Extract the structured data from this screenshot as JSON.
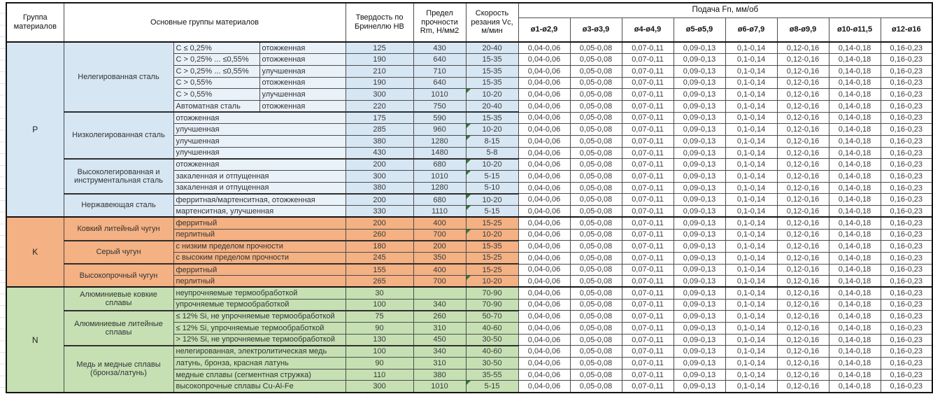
{
  "header": {
    "group_col": "Группа материалов",
    "materials_col": "Основные группы материалов",
    "hardness_col": "Твердость по Бринеллю НВ",
    "strength_col": "Предел прочности Rm, Н/мм2",
    "speed_col": "Скорость резания Vc, м/мин",
    "feed_col": "Подача Fn, мм/об",
    "diameter_cols": [
      "ø1-ø2,9",
      "ø3-ø3,9",
      "ø4-ø4,9",
      "ø5-ø5,9",
      "ø6-ø7,9",
      "ø8-ø9,9",
      "ø10-ø11,5",
      "ø12-ø16"
    ]
  },
  "feed_values": [
    "0,04-0,06",
    "0,05-0,08",
    "0,07-0,11",
    "0,09-0,13",
    "0,1-0,14",
    "0,12-0,16",
    "0,14-0,18",
    "0,16-0,23"
  ],
  "colors": {
    "group_p": "#d7e6f3",
    "group_p_detail": "#e9f1f9",
    "group_k": "#f4b183",
    "group_k_detail": "#f4b183",
    "group_n": "#c6e0b4",
    "group_n_detail": "#c6e0b4",
    "note_marker": "#2e7d32",
    "border_heavy": "#141414",
    "border_light": "#4d4d4d"
  },
  "groups": [
    {
      "code": "P",
      "color": "#d7e6f3",
      "detail_color": "#e9f1f9",
      "subgroups": [
        {
          "name": "Нелегированная сталь",
          "rows": [
            {
              "d1": "C ≤ 0,25%",
              "d2": "отожженная",
              "hb": "125",
              "rm": "430",
              "vc": "20-40",
              "note": false
            },
            {
              "d1": "C > 0,25% ... ≤0,55%",
              "d2": "отожженная",
              "hb": "190",
              "rm": "640",
              "vc": "15-35",
              "note": false
            },
            {
              "d1": "C > 0,25% ... ≤0,55%",
              "d2": "улучшенная",
              "hb": "210",
              "rm": "710",
              "vc": "15-35",
              "note": false
            },
            {
              "d1": "C > 0,55%",
              "d2": "отожженная",
              "hb": "190",
              "rm": "640",
              "vc": "15-35",
              "note": false
            },
            {
              "d1": "C > 0,55%",
              "d2": "улучшенная",
              "hb": "300",
              "rm": "1010",
              "vc": "10-20",
              "note": true
            },
            {
              "d1": "Автоматная сталь",
              "d2": "отожженная",
              "hb": "220",
              "rm": "750",
              "vc": "20-40",
              "note": false
            }
          ]
        },
        {
          "name": "Низколегированная сталь",
          "rows": [
            {
              "d": "отожженная",
              "hb": "175",
              "rm": "590",
              "vc": "15-35",
              "note": false
            },
            {
              "d": "улучшенная",
              "hb": "285",
              "rm": "960",
              "vc": "10-20",
              "note": true
            },
            {
              "d": "улучшенная",
              "hb": "380",
              "rm": "1280",
              "vc": "8-15",
              "note": true
            },
            {
              "d": "улучшенная",
              "hb": "430",
              "rm": "1480",
              "vc": "5-8",
              "note": false
            }
          ]
        },
        {
          "name": "Высоколегированная и инструментальная сталь",
          "rows": [
            {
              "d": "отожженная",
              "hb": "200",
              "rm": "680",
              "vc": "10-20",
              "note": true
            },
            {
              "d": "закаленная и отпущенная",
              "hb": "300",
              "rm": "1010",
              "vc": "5-15",
              "note": true
            },
            {
              "d": "закаленная и отпущенная",
              "hb": "380",
              "rm": "1280",
              "vc": "5-10",
              "note": false
            }
          ]
        },
        {
          "name": "Нержавеющая сталь",
          "rows": [
            {
              "d": "ферритная/мартенситная, отожженная",
              "hb": "200",
              "rm": "680",
              "vc": "10-20",
              "note": true
            },
            {
              "d": "мартенситная, улучшенная",
              "hb": "330",
              "rm": "1110",
              "vc": "5-15",
              "note": true
            }
          ]
        }
      ]
    },
    {
      "code": "K",
      "color": "#f4b183",
      "detail_color": "#f4b183",
      "subgroups": [
        {
          "name": "Ковкий литейный чугун",
          "rows": [
            {
              "d": "ферритный",
              "hb": "200",
              "rm": "400",
              "vc": "15-25",
              "note": false
            },
            {
              "d": "перлитный",
              "hb": "260",
              "rm": "700",
              "vc": "10-20",
              "note": true
            }
          ]
        },
        {
          "name": "Серый чугун",
          "rows": [
            {
              "d": "с низким пределом прочности",
              "hb": "180",
              "rm": "200",
              "vc": "15-35",
              "note": false
            },
            {
              "d": "с высоким пределом прочности",
              "hb": "245",
              "rm": "350",
              "vc": "15-25",
              "note": false
            }
          ]
        },
        {
          "name": "Высокопрочный чугун",
          "rows": [
            {
              "d": "ферритный",
              "hb": "155",
              "rm": "400",
              "vc": "15-25",
              "note": false
            },
            {
              "d": "перлитный",
              "hb": "265",
              "rm": "700",
              "vc": "10-20",
              "note": true
            }
          ]
        }
      ]
    },
    {
      "code": "N",
      "color": "#c6e0b4",
      "detail_color": "#c6e0b4",
      "subgroups": [
        {
          "name": "Алюминиевые ковкие сплавы",
          "rows": [
            {
              "d": "неупрочняемые термообработкой",
              "hb": "30",
              "rm": "",
              "vc": "70-90",
              "note": false
            },
            {
              "d": "упрочняемые термообработкой",
              "hb": "100",
              "rm": "340",
              "vc": "70-90",
              "note": false
            }
          ]
        },
        {
          "name": "Алюминиевые литейные сплавы",
          "rows": [
            {
              "d": "≤ 12% Si, не упрочняемые термообработкой",
              "hb": "75",
              "rm": "260",
              "vc": "50-70",
              "note": false
            },
            {
              "d": "≤ 12% Si, упрочняемые термообработкой",
              "hb": "90",
              "rm": "310",
              "vc": "40-60",
              "note": false
            },
            {
              "d": "> 12% Si, не упрочняемые термообработкой",
              "hb": "130",
              "rm": "450",
              "vc": "30-50",
              "note": false
            }
          ]
        },
        {
          "name": "Медь и медные сплавы (бронза/латунь)",
          "rows": [
            {
              "d": "нелегированная, электролитическая медь",
              "hb": "100",
              "rm": "340",
              "vc": "40-60",
              "note": false
            },
            {
              "d": "латунь, бронза, красная латунь",
              "hb": "90",
              "rm": "310",
              "vc": "30-50",
              "note": false
            },
            {
              "d": "медные сплавы (сегментная стружка)",
              "hb": "110",
              "rm": "380",
              "vc": "35-55",
              "note": false
            },
            {
              "d": "высокопрочные сплавы Cu-Al-Fe",
              "hb": "300",
              "rm": "1010",
              "vc": "5-15",
              "note": true
            }
          ]
        }
      ]
    }
  ]
}
